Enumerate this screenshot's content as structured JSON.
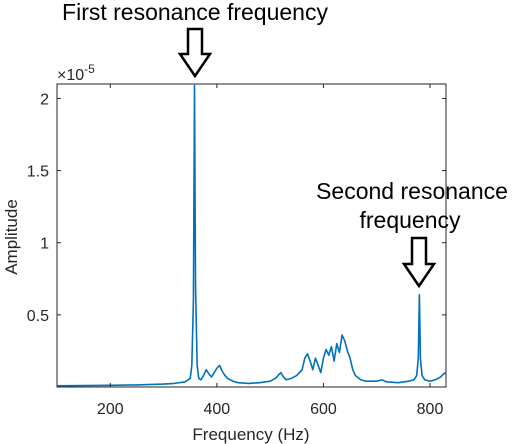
{
  "chart_data": {
    "type": "line",
    "xlabel": "Frequency (Hz)",
    "ylabel": "Amplitude",
    "y_exponent_label": "×10",
    "y_exponent_power": "-5",
    "xlim": [
      100,
      830
    ],
    "ylim": [
      0,
      2.1
    ],
    "x_ticks": [
      200,
      400,
      600,
      800
    ],
    "x_tick_labels": [
      "200",
      "400",
      "600",
      "800"
    ],
    "y_ticks": [
      0.5,
      1,
      1.5,
      2
    ],
    "y_tick_labels": [
      "0.5",
      "1",
      "1.5",
      "2"
    ],
    "grid": false,
    "line_color": "#0072BD",
    "series": [
      {
        "x": [
          100,
          150,
          200,
          250,
          300,
          320,
          340,
          350,
          353,
          356,
          358,
          360,
          363,
          366,
          370,
          375,
          380,
          385,
          390,
          395,
          400,
          405,
          410,
          415,
          420,
          430,
          440,
          460,
          480,
          500,
          510,
          515,
          520,
          525,
          530,
          540,
          550,
          560,
          565,
          570,
          575,
          580,
          585,
          590,
          595,
          600,
          605,
          610,
          615,
          620,
          625,
          630,
          635,
          640,
          645,
          650,
          655,
          660,
          670,
          680,
          700,
          710,
          715,
          720,
          740,
          760,
          770,
          775,
          778,
          780,
          782,
          785,
          790,
          800,
          810,
          820,
          825,
          830
        ],
        "values": [
          0.008,
          0.01,
          0.012,
          0.014,
          0.02,
          0.025,
          0.035,
          0.06,
          0.15,
          0.6,
          2.09,
          0.7,
          0.15,
          0.06,
          0.05,
          0.08,
          0.12,
          0.09,
          0.07,
          0.1,
          0.13,
          0.15,
          0.11,
          0.08,
          0.06,
          0.04,
          0.03,
          0.025,
          0.03,
          0.04,
          0.06,
          0.08,
          0.1,
          0.07,
          0.05,
          0.06,
          0.08,
          0.12,
          0.2,
          0.23,
          0.18,
          0.12,
          0.2,
          0.15,
          0.1,
          0.2,
          0.26,
          0.22,
          0.28,
          0.18,
          0.3,
          0.24,
          0.36,
          0.32,
          0.25,
          0.2,
          0.12,
          0.08,
          0.05,
          0.04,
          0.04,
          0.05,
          0.04,
          0.035,
          0.03,
          0.04,
          0.05,
          0.08,
          0.2,
          0.64,
          0.2,
          0.08,
          0.05,
          0.04,
          0.05,
          0.07,
          0.09,
          0.1
        ]
      }
    ]
  },
  "annotations": [
    {
      "lines": [
        "First resonance frequency"
      ],
      "x": 358,
      "y": 2.09
    },
    {
      "lines": [
        "Second resonance",
        "frequency"
      ],
      "x": 780,
      "y": 0.64
    }
  ]
}
